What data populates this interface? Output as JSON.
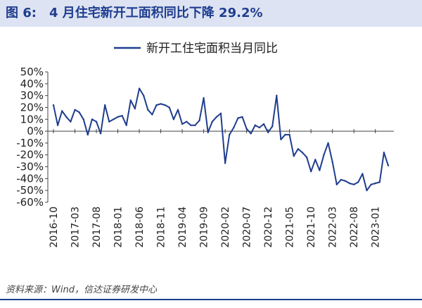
{
  "figure": {
    "label": "图 6:",
    "title": "4 月住宅新开工面积同比下降 29.2%",
    "source": "资料来源：Wind，信达证券研发中心"
  },
  "colors": {
    "line": "#1f3d8f",
    "title_bg": "#dde3f2",
    "title_text": "#1f3d8f",
    "axis": "#444444"
  },
  "chart_data": {
    "type": "line",
    "title": "",
    "xlabel": "",
    "ylabel": "",
    "legend_position": "top-center",
    "grid": false,
    "ylim": [
      -60,
      50
    ],
    "yticks": [
      "50%",
      "40%",
      "30%",
      "20%",
      "10%",
      "0%",
      "-10%",
      "-20%",
      "-30%",
      "-40%",
      "-50%",
      "-60%"
    ],
    "xtick_labels": [
      "2016-10",
      "2017-03",
      "2017-08",
      "2018-01",
      "2018-06",
      "2018-11",
      "2019-04",
      "2019-09",
      "2020-02",
      "2020-07",
      "2020-12",
      "2021-05",
      "2021-10",
      "2022-03",
      "2022-08",
      "2023-01"
    ],
    "series": [
      {
        "name": "新开工住宅面积当月同比",
        "x": [
          "2016-10",
          "2016-11",
          "2016-12",
          "2017-01",
          "2017-02",
          "2017-03",
          "2017-04",
          "2017-05",
          "2017-06",
          "2017-07",
          "2017-08",
          "2017-09",
          "2017-10",
          "2017-11",
          "2017-12",
          "2018-01",
          "2018-02",
          "2018-03",
          "2018-04",
          "2018-05",
          "2018-06",
          "2018-07",
          "2018-08",
          "2018-09",
          "2018-10",
          "2018-11",
          "2018-12",
          "2019-01",
          "2019-02",
          "2019-03",
          "2019-04",
          "2019-05",
          "2019-06",
          "2019-07",
          "2019-08",
          "2019-09",
          "2019-10",
          "2019-11",
          "2019-12",
          "2020-01",
          "2020-02",
          "2020-03",
          "2020-04",
          "2020-05",
          "2020-06",
          "2020-07",
          "2020-08",
          "2020-09",
          "2020-10",
          "2020-11",
          "2020-12",
          "2021-01",
          "2021-02",
          "2021-03",
          "2021-04",
          "2021-05",
          "2021-06",
          "2021-07",
          "2021-08",
          "2021-09",
          "2021-10",
          "2021-11",
          "2021-12",
          "2022-01",
          "2022-02",
          "2022-03",
          "2022-04",
          "2022-05",
          "2022-06",
          "2022-07",
          "2022-08",
          "2022-09",
          "2022-10",
          "2022-11",
          "2022-12",
          "2023-01",
          "2023-02",
          "2023-03",
          "2023-04"
        ],
        "values": [
          22,
          5,
          17,
          12,
          8,
          18,
          16,
          10,
          -3,
          10,
          8,
          -2,
          22,
          8,
          10,
          12,
          13,
          5,
          26,
          19,
          36,
          30,
          18,
          14,
          22,
          23,
          22,
          20,
          10,
          18,
          6,
          8,
          5,
          5,
          9,
          28,
          -1,
          8,
          12,
          15,
          -27,
          -3,
          3,
          11,
          12,
          2,
          -2,
          5,
          3,
          6,
          -1,
          4,
          30,
          -7,
          -3,
          -3,
          -21,
          -15,
          -18,
          -22,
          -34,
          -24,
          -33,
          -20,
          -10,
          -26,
          -45,
          -41,
          -42,
          -44,
          -45,
          -43,
          -36,
          -50,
          -45,
          -44,
          -43,
          -18,
          -29
        ]
      }
    ]
  }
}
